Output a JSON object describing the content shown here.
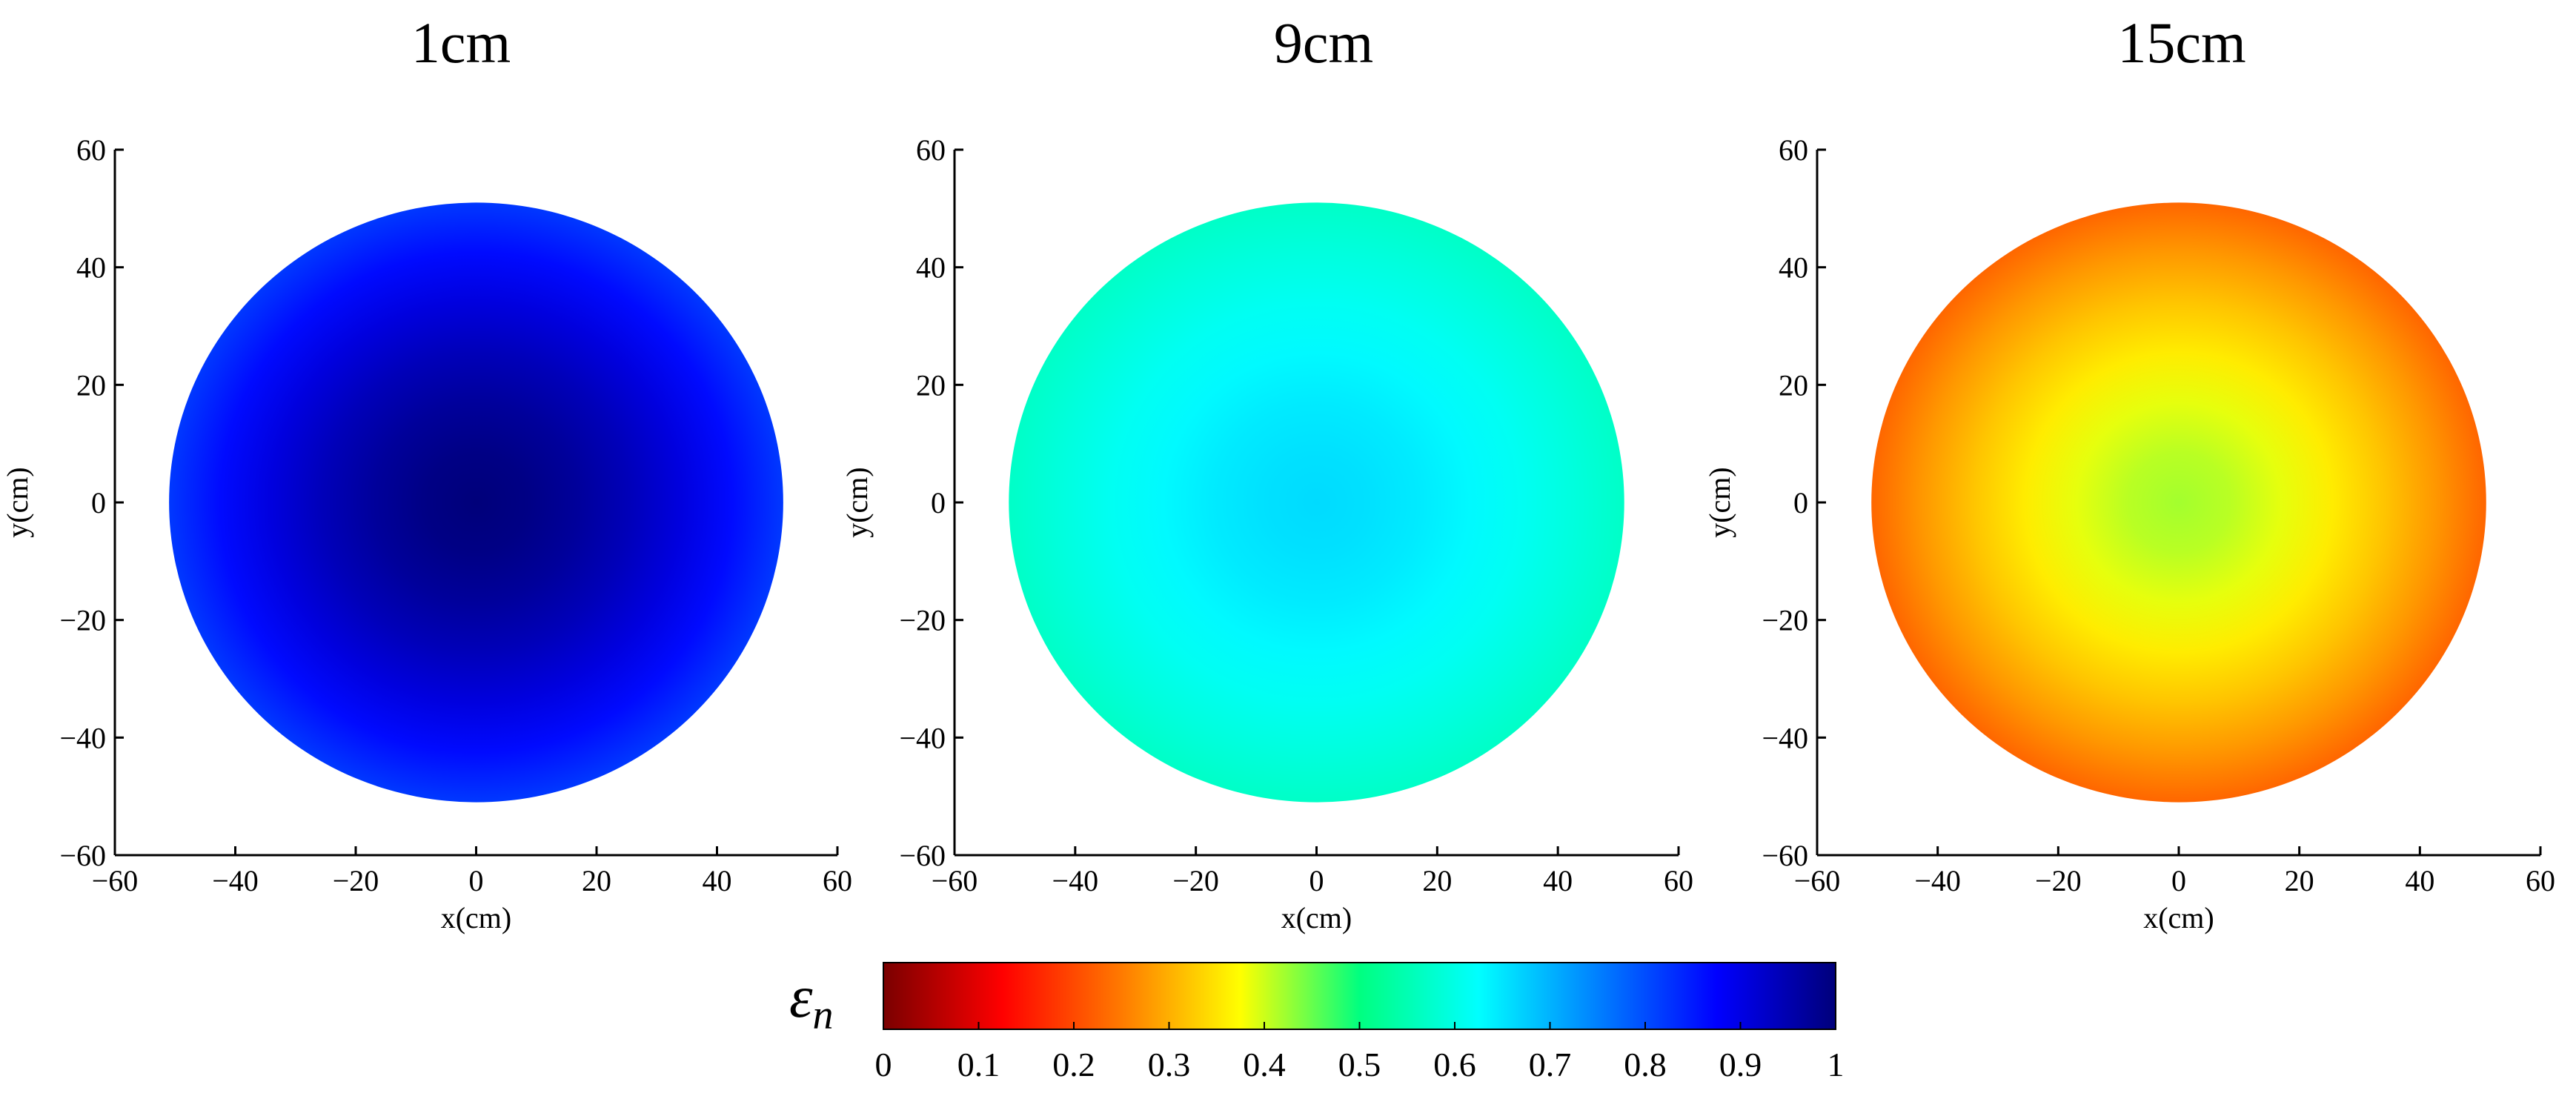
{
  "chart_data": {
    "type": "heatmap",
    "panels": [
      {
        "title": "1cm",
        "xlabel": "x(cm)",
        "ylabel": "y(cm)",
        "xlim": [
          -60,
          60
        ],
        "ylim": [
          -60,
          60
        ],
        "xticks": [
          "−60",
          "−40",
          "−20",
          "0",
          "20",
          "40",
          "60"
        ],
        "yticks": [
          "60",
          "40",
          "20",
          "0",
          "−20",
          "−40",
          "−60"
        ],
        "disk_radius": 51,
        "value_center": 1.0,
        "value_edge": 0.82
      },
      {
        "title": "9cm",
        "xlabel": "x(cm)",
        "ylabel": "y(cm)",
        "xlim": [
          -60,
          60
        ],
        "ylim": [
          -60,
          60
        ],
        "xticks": [
          "−60",
          "−40",
          "−20",
          "0",
          "20",
          "40",
          "60"
        ],
        "yticks": [
          "60",
          "40",
          "20",
          "0",
          "−20",
          "−40",
          "−60"
        ],
        "disk_radius": 51,
        "value_center": 0.66,
        "value_edge": 0.57
      },
      {
        "title": "15cm",
        "xlabel": "x(cm)",
        "ylabel": "y(cm)",
        "xlim": [
          -60,
          60
        ],
        "ylim": [
          -60,
          60
        ],
        "xticks": [
          "−60",
          "−40",
          "−20",
          "0",
          "20",
          "40",
          "60"
        ],
        "yticks": [
          "60",
          "40",
          "20",
          "0",
          "−20",
          "−40",
          "−60"
        ],
        "disk_radius": 51,
        "value_center": 0.42,
        "value_edge": 0.23
      }
    ],
    "colorbar": {
      "label_base": "ε",
      "label_sub": "n",
      "range": [
        0,
        1
      ],
      "tick_values": [
        0,
        0.1,
        0.2,
        0.3,
        0.4,
        0.5,
        0.6,
        0.7,
        0.8,
        0.9,
        1
      ],
      "tick_labels": [
        "0",
        "0.1",
        "0.2",
        "0.3",
        "0.4",
        "0.5",
        "0.6",
        "0.7",
        "0.8",
        "0.9",
        "1"
      ],
      "colormap": [
        "#7a0000",
        "#ff0000",
        "#ff7a00",
        "#ffff00",
        "#00ff80",
        "#00ffff",
        "#0080ff",
        "#0000ff",
        "#00007a"
      ]
    }
  }
}
